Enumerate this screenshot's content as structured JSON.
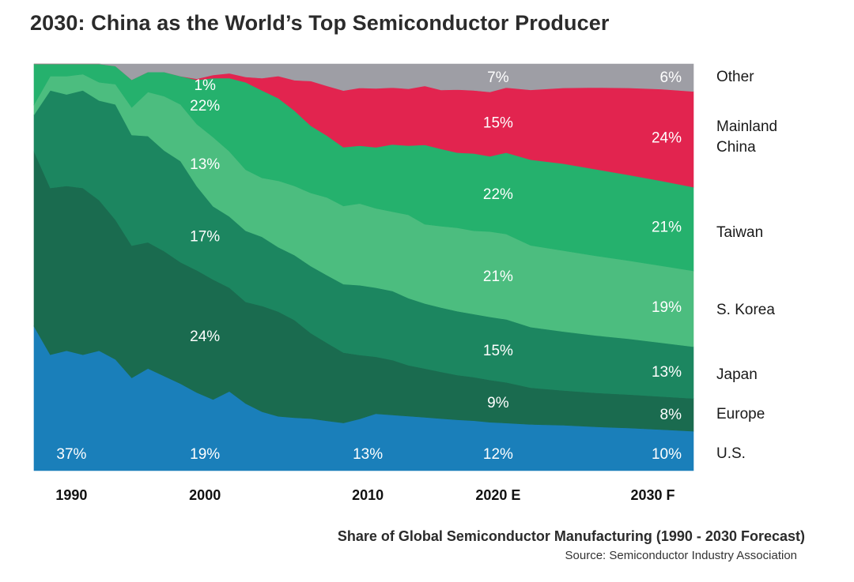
{
  "title": "2030: China as the World’s Top Semiconductor Producer",
  "caption": "Share of Global Semiconductor Manufacturing (1990 - 2030 Forecast)",
  "source": "Source: Semiconductor Industry Association",
  "chart_data": {
    "type": "area",
    "stacked": true,
    "normalized": true,
    "title": "2030: China as the World’s Top Semiconductor Producer",
    "subtitle": "Share of Global Semiconductor Manufacturing (1990 - 2030 Forecast)",
    "xlabel": "",
    "ylabel": "",
    "ylim": [
      0,
      100
    ],
    "xlim": [
      1989.5,
      2030
    ],
    "grid": false,
    "legend_position": "right",
    "x_ticks": [
      {
        "year": 1991.8,
        "label": "1990"
      },
      {
        "year": 2000,
        "label": "2000"
      },
      {
        "year": 2010,
        "label": "2010"
      },
      {
        "year": 2018,
        "label": "2020 E"
      },
      {
        "year": 2027.5,
        "label": "2030 F"
      }
    ],
    "x": [
      1989.5,
      1990.5,
      1991.5,
      1992.5,
      1993.5,
      1994.5,
      1995.5,
      1996.5,
      1997.5,
      1998.5,
      1999.5,
      2000.5,
      2001.5,
      2002.5,
      2003.5,
      2004.5,
      2005.5,
      2006.5,
      2007.5,
      2008.5,
      2009.5,
      2010.5,
      2011.5,
      2012.5,
      2013.5,
      2014.5,
      2015.5,
      2016.5,
      2017.5,
      2018.5,
      2020,
      2022,
      2024,
      2026,
      2028,
      2030
    ],
    "series": [
      {
        "name": "U.S.",
        "color": "#1a7fba",
        "values": [
          35.5,
          28.5,
          29.5,
          28.5,
          29.5,
          27.5,
          23.5,
          25.5,
          23.5,
          21.5,
          19.5,
          17.5,
          19.5,
          16.5,
          14.5,
          13.5,
          13.0,
          12.8,
          12.5,
          12.2,
          13.0,
          14.0,
          13.7,
          13.4,
          13.1,
          12.8,
          12.5,
          12.3,
          11.9,
          11.7,
          11.6,
          11.4,
          11.0,
          10.7,
          10.3,
          9.9
        ]
      },
      {
        "name": "Europe",
        "color": "#1a6b4f",
        "values": [
          43.0,
          41.0,
          40.5,
          41.0,
          37.0,
          34.5,
          33.5,
          31.5,
          31.0,
          30.0,
          30.5,
          29.5,
          25.5,
          25.0,
          26.0,
          26.0,
          24.0,
          21.0,
          19.5,
          18.0,
          16.0,
          14.0,
          13.5,
          12.5,
          12.0,
          11.5,
          11.0,
          10.7,
          10.4,
          10.0,
          9.2,
          8.7,
          8.5,
          8.4,
          8.3,
          8.2
        ]
      },
      {
        "name": "Japan",
        "color": "#1c8660",
        "values": [
          9.0,
          24.0,
          22.5,
          24.0,
          24.5,
          28.5,
          28.0,
          26.5,
          25.0,
          25.0,
          21.0,
          18.0,
          17.5,
          17.5,
          17.0,
          16.0,
          16.0,
          16.5,
          17.0,
          17.5,
          17.5,
          17.0,
          17.0,
          16.5,
          16.0,
          15.8,
          15.7,
          15.5,
          15.5,
          15.5,
          15.2,
          14.8,
          14.4,
          14.0,
          13.5,
          13.0
        ]
      },
      {
        "name": "S. Korea",
        "color": "#4cbd7f",
        "values": [
          2.5,
          3.5,
          4.5,
          4.0,
          4.5,
          5.0,
          7.0,
          11.0,
          13.5,
          14.0,
          15.5,
          17.0,
          16.0,
          15.0,
          14.5,
          16.5,
          17.0,
          18.0,
          19.5,
          20.0,
          20.5,
          19.5,
          19.5,
          20.5,
          19.5,
          20.0,
          20.5,
          20.5,
          21.0,
          21.0,
          20.5,
          20.3,
          20.0,
          19.6,
          19.3,
          19.0
        ]
      },
      {
        "name": "Taiwan",
        "color": "#25b16d",
        "values": [
          10.0,
          3.0,
          3.0,
          2.5,
          4.5,
          4.5,
          7.0,
          5.0,
          6.0,
          7.0,
          11.0,
          14.5,
          18.0,
          21.5,
          21.5,
          20.5,
          18.5,
          16.5,
          15.5,
          15.0,
          14.5,
          15.0,
          16.5,
          17.0,
          19.5,
          19.0,
          18.5,
          19.0,
          18.5,
          20.0,
          21.5,
          21.8,
          21.7,
          21.5,
          21.3,
          21.0
        ]
      },
      {
        "name": "Mainland China",
        "color": "#e2244f",
        "values": [
          0.0,
          0.0,
          0.0,
          0.0,
          0.0,
          0.0,
          0.0,
          0.0,
          0.0,
          0.0,
          0.3,
          0.8,
          1.2,
          1.3,
          3.0,
          5.5,
          7.5,
          11.0,
          12.5,
          14.5,
          14.5,
          14.5,
          14.0,
          14.0,
          14.5,
          14.5,
          15.5,
          15.5,
          15.8,
          16.0,
          17.5,
          19.0,
          20.5,
          21.8,
          23.0,
          24.0
        ]
      },
      {
        "name": "Other",
        "color": "#9e9ea5",
        "values": [
          0.0,
          0.0,
          0.0,
          0.0,
          0.0,
          0.5,
          4.0,
          2.0,
          2.0,
          3.0,
          3.7,
          2.7,
          2.3,
          3.2,
          3.5,
          3.0,
          4.0,
          4.2,
          5.5,
          6.8,
          6.0,
          6.0,
          5.8,
          6.1,
          5.4,
          6.4,
          6.3,
          6.5,
          6.9,
          5.8,
          6.5,
          6.0,
          5.9,
          6.0,
          6.3,
          6.9
        ]
      }
    ],
    "annotations": [
      {
        "series": "U.S.",
        "year": 1991.8,
        "text": "37%"
      },
      {
        "series": "U.S.",
        "year": 2000,
        "text": "19%"
      },
      {
        "series": "U.S.",
        "year": 2010,
        "text": "13%"
      },
      {
        "series": "U.S.",
        "year": 2018,
        "text": "12%"
      },
      {
        "series": "U.S.",
        "year": 2029,
        "text": "10%"
      },
      {
        "series": "Europe",
        "year": 2000,
        "text": "24%"
      },
      {
        "series": "Europe",
        "year": 2018,
        "text": "9%"
      },
      {
        "series": "Europe",
        "year": 2029,
        "text": "8%"
      },
      {
        "series": "Japan",
        "year": 2000,
        "text": "17%"
      },
      {
        "series": "Japan",
        "year": 2018,
        "text": "15%"
      },
      {
        "series": "Japan",
        "year": 2029,
        "text": "13%"
      },
      {
        "series": "S. Korea",
        "year": 2000,
        "text": "13%"
      },
      {
        "series": "S. Korea",
        "year": 2018,
        "text": "21%"
      },
      {
        "series": "S. Korea",
        "year": 2029,
        "text": "19%"
      },
      {
        "series": "Taiwan",
        "year": 2000,
        "text": "22%"
      },
      {
        "series": "Taiwan",
        "year": 2018,
        "text": "22%"
      },
      {
        "series": "Taiwan",
        "year": 2029,
        "text": "21%"
      },
      {
        "series": "Mainland China",
        "year": 2000,
        "text": "1%"
      },
      {
        "series": "Mainland China",
        "year": 2018,
        "text": "15%"
      },
      {
        "series": "Mainland China",
        "year": 2029,
        "text": "24%"
      },
      {
        "series": "Other",
        "year": 2018,
        "text": "7%"
      },
      {
        "series": "Other",
        "year": 2029,
        "text": "6%"
      }
    ],
    "legend": [
      "Other",
      "Mainland China",
      "Taiwan",
      "S. Korea",
      "Japan",
      "Europe",
      "U.S."
    ]
  }
}
